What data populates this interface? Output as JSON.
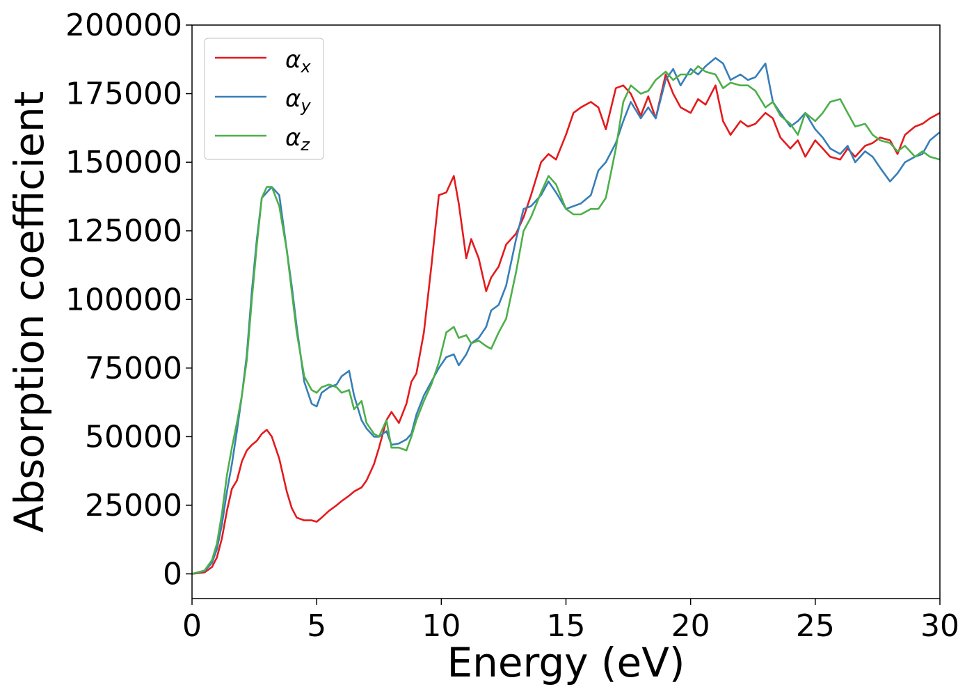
{
  "chart_data": {
    "type": "line",
    "title": "",
    "xlabel": "Energy (eV)",
    "ylabel": "Absorption coefficient",
    "xlim": [
      0,
      30
    ],
    "ylim": [
      -9000,
      200000
    ],
    "xticks": [
      0,
      5,
      10,
      15,
      20,
      25,
      30
    ],
    "yticks": [
      0,
      25000,
      50000,
      75000,
      100000,
      125000,
      150000,
      175000,
      200000
    ],
    "grid": false,
    "legend_position": "top-left",
    "series": [
      {
        "name": "αx",
        "symbol": "α",
        "subscript": "x",
        "color": "#e41a1c",
        "x": [
          0,
          0.5,
          0.8,
          1.0,
          1.2,
          1.4,
          1.6,
          1.8,
          2.0,
          2.2,
          2.4,
          2.6,
          2.8,
          3.0,
          3.2,
          3.5,
          3.8,
          4.0,
          4.2,
          4.5,
          4.8,
          5.0,
          5.2,
          5.5,
          5.8,
          6.0,
          6.3,
          6.5,
          6.8,
          7.0,
          7.3,
          7.5,
          7.8,
          8.0,
          8.3,
          8.6,
          8.8,
          9.0,
          9.3,
          9.6,
          9.9,
          10.2,
          10.5,
          10.7,
          11.0,
          11.2,
          11.5,
          11.8,
          12.0,
          12.3,
          12.6,
          13.0,
          13.3,
          13.6,
          14.0,
          14.3,
          14.6,
          15.0,
          15.3,
          15.6,
          16.0,
          16.3,
          16.6,
          17.0,
          17.3,
          17.6,
          18.0,
          18.3,
          18.6,
          19.0,
          19.3,
          19.6,
          20.0,
          20.3,
          20.6,
          21.0,
          21.3,
          21.6,
          22.0,
          22.3,
          22.6,
          23.0,
          23.3,
          23.6,
          24.0,
          24.3,
          24.6,
          25.0,
          25.3,
          25.6,
          26.0,
          26.3,
          26.6,
          27.0,
          27.3,
          27.6,
          28.0,
          28.3,
          28.6,
          29.0,
          29.3,
          29.6,
          30.0
        ],
        "y": [
          0,
          500,
          2500,
          6000,
          13000,
          23000,
          31000,
          34000,
          41000,
          45000,
          47000,
          48500,
          51000,
          52500,
          50000,
          42000,
          30000,
          24000,
          20500,
          19500,
          19500,
          19000,
          20500,
          23000,
          25000,
          26500,
          28500,
          30000,
          31500,
          34000,
          40000,
          46000,
          56000,
          59000,
          55000,
          62000,
          70000,
          73000,
          88000,
          112000,
          138000,
          139000,
          145000,
          135000,
          115000,
          122000,
          115000,
          103000,
          108000,
          112000,
          120000,
          124000,
          130000,
          138000,
          150000,
          153000,
          151000,
          160000,
          168000,
          170000,
          172000,
          170000,
          162000,
          177000,
          178000,
          175000,
          167000,
          174000,
          166000,
          182000,
          175000,
          170000,
          168000,
          173000,
          171000,
          178000,
          165000,
          160000,
          165000,
          163000,
          164000,
          168000,
          166000,
          159000,
          155000,
          158000,
          152000,
          158000,
          155000,
          152000,
          151000,
          155000,
          152000,
          156000,
          157000,
          159000,
          158000,
          153000,
          160000,
          163000,
          164000,
          166000,
          168000
        ]
      },
      {
        "name": "αy",
        "symbol": "α",
        "subscript": "y",
        "color": "#377eb8",
        "x": [
          0,
          0.5,
          0.8,
          1.0,
          1.2,
          1.4,
          1.6,
          1.8,
          2.0,
          2.2,
          2.4,
          2.6,
          2.8,
          3.0,
          3.2,
          3.5,
          3.8,
          4.0,
          4.2,
          4.5,
          4.8,
          5.0,
          5.2,
          5.5,
          5.8,
          6.0,
          6.3,
          6.5,
          6.8,
          7.0,
          7.3,
          7.5,
          7.8,
          8.0,
          8.3,
          8.6,
          8.8,
          9.0,
          9.3,
          9.6,
          9.9,
          10.2,
          10.5,
          10.7,
          11.0,
          11.2,
          11.5,
          11.8,
          12.0,
          12.3,
          12.6,
          13.0,
          13.3,
          13.6,
          14.0,
          14.3,
          14.6,
          15.0,
          15.3,
          15.6,
          16.0,
          16.3,
          16.6,
          17.0,
          17.3,
          17.6,
          18.0,
          18.3,
          18.6,
          19.0,
          19.3,
          19.6,
          20.0,
          20.3,
          20.6,
          21.0,
          21.3,
          21.6,
          22.0,
          22.3,
          22.6,
          23.0,
          23.3,
          23.6,
          24.0,
          24.3,
          24.6,
          25.0,
          25.3,
          25.6,
          26.0,
          26.3,
          26.6,
          27.0,
          27.3,
          27.6,
          28.0,
          28.3,
          28.6,
          29.0,
          29.3,
          29.6,
          30.0
        ],
        "y": [
          0,
          1000,
          4000,
          9000,
          18000,
          30000,
          40000,
          52000,
          65000,
          80000,
          103000,
          122000,
          137000,
          139000,
          141000,
          138000,
          118000,
          105000,
          90000,
          70000,
          62000,
          61000,
          66000,
          68000,
          69000,
          72000,
          74000,
          65000,
          56000,
          53000,
          50000,
          50000,
          52000,
          47000,
          47500,
          49000,
          51000,
          58000,
          65000,
          70000,
          75000,
          79000,
          80000,
          76000,
          80000,
          84000,
          86000,
          90000,
          96000,
          98000,
          105000,
          122000,
          133000,
          134000,
          138000,
          143000,
          139000,
          133000,
          134000,
          135000,
          138000,
          147000,
          150000,
          157000,
          165000,
          172000,
          166000,
          170000,
          166000,
          180000,
          184000,
          178000,
          184000,
          182000,
          185000,
          188000,
          186000,
          180000,
          182000,
          180000,
          181000,
          186000,
          172000,
          168000,
          163000,
          165000,
          168000,
          162000,
          159000,
          155000,
          153000,
          156000,
          150000,
          154000,
          152000,
          148000,
          143000,
          146000,
          150000,
          152000,
          153000,
          158000,
          161000
        ]
      },
      {
        "name": "αz",
        "symbol": "α",
        "subscript": "z",
        "color": "#4daf4a",
        "x": [
          0,
          0.5,
          0.8,
          1.0,
          1.2,
          1.4,
          1.6,
          1.8,
          2.0,
          2.2,
          2.4,
          2.6,
          2.8,
          3.0,
          3.2,
          3.5,
          3.8,
          4.0,
          4.2,
          4.5,
          4.8,
          5.0,
          5.2,
          5.5,
          5.8,
          6.0,
          6.3,
          6.5,
          6.8,
          7.0,
          7.3,
          7.5,
          7.8,
          8.0,
          8.3,
          8.6,
          8.8,
          9.0,
          9.3,
          9.6,
          9.9,
          10.2,
          10.5,
          10.7,
          11.0,
          11.2,
          11.5,
          11.8,
          12.0,
          12.3,
          12.6,
          13.0,
          13.3,
          13.6,
          14.0,
          14.3,
          14.6,
          15.0,
          15.3,
          15.6,
          16.0,
          16.3,
          16.6,
          17.0,
          17.3,
          17.6,
          18.0,
          18.3,
          18.6,
          19.0,
          19.3,
          19.6,
          20.0,
          20.3,
          20.6,
          21.0,
          21.3,
          21.6,
          22.0,
          22.3,
          22.6,
          23.0,
          23.3,
          23.6,
          24.0,
          24.3,
          24.6,
          25.0,
          25.3,
          25.6,
          26.0,
          26.3,
          26.6,
          27.0,
          27.3,
          27.6,
          28.0,
          28.3,
          28.6,
          29.0,
          29.3,
          29.6,
          30.0
        ],
        "y": [
          0,
          1200,
          5000,
          11000,
          22000,
          36000,
          46000,
          55000,
          65000,
          78000,
          100000,
          120000,
          137000,
          141000,
          141000,
          134000,
          118000,
          103000,
          88000,
          72000,
          67000,
          66000,
          68000,
          69000,
          68000,
          66000,
          67000,
          60000,
          63000,
          55000,
          51000,
          50000,
          56000,
          46000,
          46000,
          45000,
          50000,
          56000,
          63000,
          69000,
          77000,
          88000,
          90000,
          86000,
          87000,
          84000,
          85000,
          83000,
          82000,
          88000,
          93000,
          110000,
          125000,
          130000,
          139000,
          145000,
          142000,
          133000,
          131000,
          131000,
          133000,
          133000,
          137000,
          155000,
          172000,
          178000,
          175000,
          176000,
          180000,
          183000,
          180000,
          182000,
          182000,
          185000,
          183000,
          182000,
          177000,
          179000,
          178000,
          178000,
          176000,
          170000,
          172000,
          167000,
          164000,
          160000,
          168000,
          165000,
          168000,
          172000,
          173000,
          168000,
          163000,
          164000,
          160000,
          158000,
          157000,
          154000,
          156000,
          152000,
          154000,
          152000,
          151000
        ]
      }
    ]
  }
}
